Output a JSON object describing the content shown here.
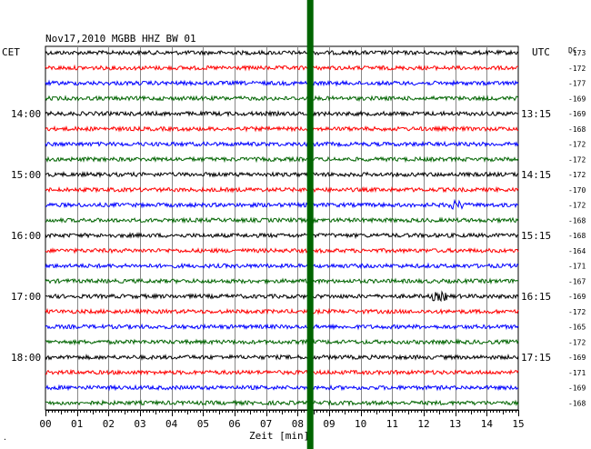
{
  "chart_data": {
    "type": "line",
    "title": "Nov17,2010   MGBB HHZ BW 01",
    "left_axis_label": "CET",
    "right_axis_label": "UTC",
    "dc_label": "DC",
    "xlabel": "Zeit [min]",
    "x_ticks": [
      "00",
      "01",
      "02",
      "03",
      "04",
      "05",
      "06",
      "07",
      "08",
      "09",
      "10",
      "11",
      "12",
      "13",
      "14",
      "15"
    ],
    "xlim": [
      0,
      15
    ],
    "cet_labels": [
      {
        "trace": 4,
        "text": "14:00"
      },
      {
        "trace": 8,
        "text": "15:00"
      },
      {
        "trace": 12,
        "text": "16:00"
      },
      {
        "trace": 16,
        "text": "17:00"
      },
      {
        "trace": 20,
        "text": "18:00"
      }
    ],
    "utc_labels": [
      {
        "trace": 4,
        "text": "13:15"
      },
      {
        "trace": 8,
        "text": "14:15"
      },
      {
        "trace": 12,
        "text": "15:15"
      },
      {
        "trace": 16,
        "text": "16:15"
      },
      {
        "trace": 20,
        "text": "17:15"
      }
    ],
    "dc_offsets": [
      "-173",
      "-172",
      "-177",
      "-169",
      "-169",
      "-168",
      "-172",
      "-172",
      "-172",
      "-170",
      "-172",
      "-168",
      "-168",
      "-164",
      "-171",
      "-167",
      "-169",
      "-172",
      "-165",
      "-172",
      "-169",
      "-171",
      "-169",
      "-168"
    ],
    "trace_colors": [
      "#000000",
      "#ff0000",
      "#0000ff",
      "#006400"
    ],
    "marker": {
      "x_minute": 8.4,
      "color": "#006400"
    },
    "events": [
      {
        "trace": 16,
        "x_minute": 12.5,
        "note": "burst"
      },
      {
        "trace": 10,
        "x_minute": 13.0,
        "note": "burst"
      }
    ],
    "footer_mark": "·"
  }
}
